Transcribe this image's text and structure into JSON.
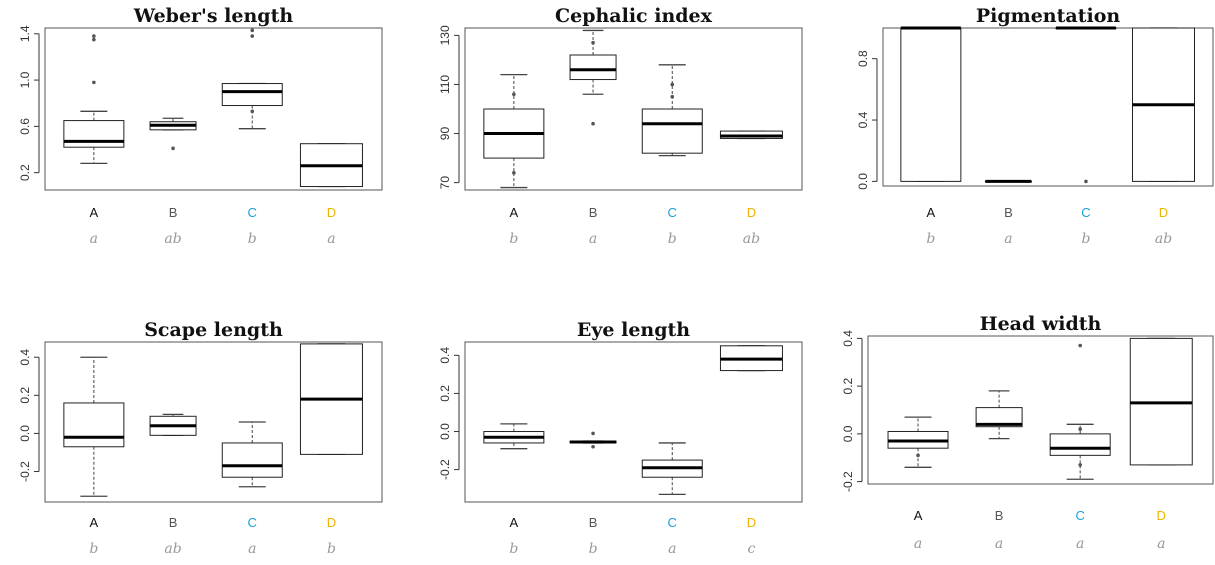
{
  "chart_data": [
    {
      "type": "boxplot",
      "title": "Weber's length",
      "categories": [
        "A",
        "B",
        "C",
        "D"
      ],
      "ylim": [
        0.05,
        1.45
      ],
      "yticks": [
        0.2,
        0.6,
        1.0,
        1.4
      ],
      "ytick_labels": [
        "0.2",
        "0.6",
        "1.0",
        "1.4"
      ],
      "boxes": [
        {
          "min": 0.28,
          "q1": 0.42,
          "median": 0.47,
          "q3": 0.65,
          "max": 0.73,
          "outliers": [
            1.35,
            1.38,
            0.98
          ]
        },
        {
          "min": 0.57,
          "q1": 0.57,
          "median": 0.61,
          "q3": 0.64,
          "max": 0.67,
          "outliers": [
            0.41
          ]
        },
        {
          "min": 0.58,
          "q1": 0.78,
          "median": 0.9,
          "q3": 0.97,
          "max": 0.97,
          "outliers": [
            1.38,
            1.43,
            0.73
          ]
        },
        {
          "min": 0.08,
          "q1": 0.08,
          "median": 0.26,
          "q3": 0.45,
          "max": 0.45,
          "outliers": []
        }
      ],
      "letters": [
        "a",
        "ab",
        "b",
        "a"
      ]
    },
    {
      "type": "boxplot",
      "title": "Cephalic index",
      "categories": [
        "A",
        "B",
        "C",
        "D"
      ],
      "ylim": [
        67,
        133
      ],
      "yticks": [
        70,
        90,
        110,
        130
      ],
      "ytick_labels": [
        "70",
        "90",
        "110",
        "130"
      ],
      "boxes": [
        {
          "min": 68,
          "q1": 80,
          "median": 90,
          "q3": 100,
          "max": 114,
          "outliers": [
            74,
            106
          ]
        },
        {
          "min": 106,
          "q1": 112,
          "median": 116,
          "q3": 122,
          "max": 132,
          "outliers": [
            94,
            127
          ]
        },
        {
          "min": 81,
          "q1": 82,
          "median": 94,
          "q3": 100,
          "max": 118,
          "outliers": [
            105,
            110
          ]
        },
        {
          "min": 88,
          "q1": 88,
          "median": 89,
          "q3": 91,
          "max": 91,
          "outliers": []
        }
      ],
      "letters": [
        "b",
        "a",
        "b",
        "ab"
      ]
    },
    {
      "type": "boxplot",
      "title": "Pigmentation",
      "categories": [
        "A",
        "B",
        "C",
        "D"
      ],
      "ylim": [
        -0.03,
        1.0
      ],
      "yticks": [
        0.0,
        0.4,
        0.8
      ],
      "ytick_labels": [
        "0.0",
        "0.4",
        "0.8"
      ],
      "boxes": [
        {
          "min": 0.0,
          "q1": 0.0,
          "median": 1.0,
          "q3": 1.0,
          "max": 1.0,
          "outliers": []
        },
        {
          "min": 0.0,
          "q1": 0.0,
          "median": 0.0,
          "q3": 0.0,
          "max": 0.0,
          "outliers": []
        },
        {
          "min": 1.0,
          "q1": 1.0,
          "median": 1.0,
          "q3": 1.0,
          "max": 1.0,
          "outliers": [
            0.0
          ]
        },
        {
          "min": 0.0,
          "q1": 0.0,
          "median": 0.5,
          "q3": 1.0,
          "max": 1.0,
          "outliers": []
        }
      ],
      "letters": [
        "b",
        "a",
        "b",
        "ab"
      ]
    },
    {
      "type": "boxplot",
      "title": "Scape length",
      "categories": [
        "A",
        "B",
        "C",
        "D"
      ],
      "ylim": [
        -0.36,
        0.48
      ],
      "yticks": [
        -0.2,
        0.0,
        0.2,
        0.4
      ],
      "ytick_labels": [
        "-0.2",
        "0.0",
        "0.2",
        "0.4"
      ],
      "boxes": [
        {
          "min": -0.33,
          "q1": -0.07,
          "median": -0.02,
          "q3": 0.16,
          "max": 0.4,
          "outliers": []
        },
        {
          "min": -0.01,
          "q1": -0.01,
          "median": 0.04,
          "q3": 0.09,
          "max": 0.1,
          "outliers": []
        },
        {
          "min": -0.28,
          "q1": -0.23,
          "median": -0.17,
          "q3": -0.05,
          "max": 0.06,
          "outliers": []
        },
        {
          "min": -0.11,
          "q1": -0.11,
          "median": 0.18,
          "q3": 0.47,
          "max": 0.47,
          "outliers": []
        }
      ],
      "letters": [
        "b",
        "ab",
        "a",
        "b"
      ]
    },
    {
      "type": "boxplot",
      "title": "Eye length",
      "categories": [
        "A",
        "B",
        "C",
        "D"
      ],
      "ylim": [
        -0.37,
        0.47
      ],
      "yticks": [
        -0.2,
        0.0,
        0.2,
        0.4
      ],
      "ytick_labels": [
        "-0.2",
        "0.0",
        "0.2",
        "0.4"
      ],
      "boxes": [
        {
          "min": -0.09,
          "q1": -0.06,
          "median": -0.03,
          "q3": 0.0,
          "max": 0.04,
          "outliers": []
        },
        {
          "min": -0.06,
          "q1": -0.06,
          "median": -0.055,
          "q3": -0.05,
          "max": -0.05,
          "outliers": [
            -0.01,
            -0.08
          ]
        },
        {
          "min": -0.33,
          "q1": -0.24,
          "median": -0.19,
          "q3": -0.15,
          "max": -0.06,
          "outliers": []
        },
        {
          "min": 0.32,
          "q1": 0.32,
          "median": 0.38,
          "q3": 0.45,
          "max": 0.45,
          "outliers": []
        }
      ],
      "letters": [
        "b",
        "b",
        "a",
        "c"
      ]
    },
    {
      "type": "boxplot",
      "title": "Head width",
      "categories": [
        "A",
        "B",
        "C",
        "D"
      ],
      "ylim": [
        -0.21,
        0.41
      ],
      "yticks": [
        -0.2,
        0.0,
        0.2,
        0.4
      ],
      "ytick_labels": [
        "-0.2",
        "0.0",
        "0.2",
        "0.4"
      ],
      "boxes": [
        {
          "min": -0.14,
          "q1": -0.06,
          "median": -0.03,
          "q3": 0.01,
          "max": 0.07,
          "outliers": [
            -0.09
          ]
        },
        {
          "min": -0.02,
          "q1": 0.03,
          "median": 0.04,
          "q3": 0.11,
          "max": 0.18,
          "outliers": []
        },
        {
          "min": -0.19,
          "q1": -0.09,
          "median": -0.06,
          "q3": 0.0,
          "max": 0.04,
          "outliers": [
            0.37,
            -0.13,
            0.02
          ]
        },
        {
          "min": -0.13,
          "q1": -0.13,
          "median": 0.13,
          "q3": 0.4,
          "max": 0.4,
          "outliers": []
        }
      ],
      "letters": [
        "a",
        "a",
        "a",
        "a"
      ]
    }
  ],
  "category_colors": {
    "A": "#111111",
    "B": "#555555",
    "C": "#1a9fd9",
    "D": "#f0b400"
  }
}
